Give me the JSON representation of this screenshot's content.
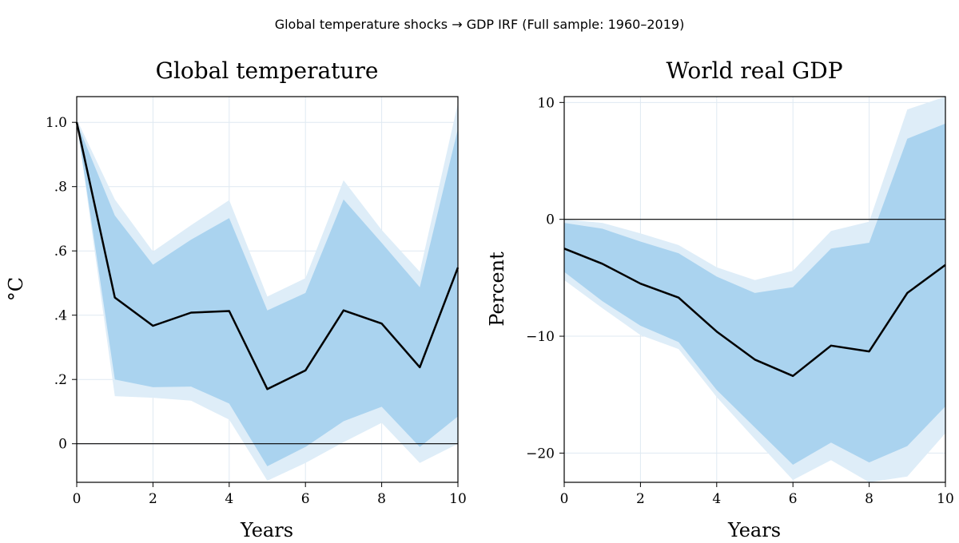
{
  "figure": {
    "suptitle": "Global temperature shocks → GDP IRF (Full sample: 1960–2019)"
  },
  "colors": {
    "band_outer": "#deedf8",
    "band_inner": "#aad3ef",
    "line": "#000000"
  },
  "chart_data": [
    {
      "type": "line",
      "title": "Global temperature",
      "xlabel": "Years",
      "ylabel": "°C",
      "xlim": [
        0,
        10
      ],
      "ylim": [
        -0.12,
        1.08
      ],
      "xticks": [
        0,
        2,
        4,
        6,
        8,
        10
      ],
      "xtick_labels": [
        "0",
        "2",
        "4",
        "6",
        "8",
        "10"
      ],
      "yticks": [
        0,
        0.2,
        0.4,
        0.6,
        0.8,
        1.0
      ],
      "ytick_labels": [
        "0",
        ".2",
        ".4",
        ".6",
        ".8",
        "1.0"
      ],
      "grid": true,
      "zero_line": true,
      "x": [
        0,
        1,
        2,
        3,
        4,
        5,
        6,
        7,
        8,
        9,
        10
      ],
      "irf": [
        1.0,
        0.455,
        0.367,
        0.408,
        0.413,
        0.17,
        0.228,
        0.415,
        0.374,
        0.238,
        0.548
      ],
      "inner_band": {
        "lower": [
          1.0,
          0.2,
          0.176,
          0.178,
          0.125,
          -0.07,
          -0.01,
          0.07,
          0.115,
          -0.01,
          0.085
        ],
        "upper": [
          1.0,
          0.71,
          0.557,
          0.635,
          0.702,
          0.415,
          0.469,
          0.76,
          0.625,
          0.487,
          0.98
        ]
      },
      "outer_band": {
        "lower": [
          1.0,
          0.148,
          0.143,
          0.134,
          0.075,
          -0.115,
          -0.06,
          0.005,
          0.065,
          -0.06,
          0.0
        ],
        "upper": [
          1.01,
          0.76,
          0.598,
          0.68,
          0.758,
          0.458,
          0.515,
          0.82,
          0.665,
          0.535,
          1.06
        ]
      }
    },
    {
      "type": "line",
      "title": "World real GDP",
      "xlabel": "Years",
      "ylabel": "Percent",
      "xlim": [
        0,
        10
      ],
      "ylim": [
        -22.5,
        10.5
      ],
      "xticks": [
        0,
        2,
        4,
        6,
        8,
        10
      ],
      "xtick_labels": [
        "0",
        "2",
        "4",
        "6",
        "8",
        "10"
      ],
      "yticks": [
        -20,
        -10,
        0,
        10
      ],
      "ytick_labels": [
        "−20",
        "−10",
        "0",
        "10"
      ],
      "grid": true,
      "zero_line": true,
      "x": [
        0,
        1,
        2,
        3,
        4,
        5,
        6,
        7,
        8,
        9,
        10
      ],
      "irf": [
        -2.5,
        -3.8,
        -5.5,
        -6.7,
        -9.6,
        -12.0,
        -13.4,
        -10.8,
        -11.3,
        -6.3,
        -3.9
      ],
      "inner_band": {
        "lower": [
          -4.5,
          -7.0,
          -9.1,
          -10.5,
          -14.6,
          -17.8,
          -21.0,
          -19.1,
          -20.8,
          -19.4,
          -16.0
        ],
        "upper": [
          -0.3,
          -0.8,
          -1.9,
          -2.9,
          -4.9,
          -6.3,
          -5.8,
          -2.5,
          -2.0,
          6.9,
          8.2
        ]
      },
      "outer_band": {
        "lower": [
          -5.2,
          -7.6,
          -9.9,
          -11.1,
          -15.2,
          -18.8,
          -22.3,
          -20.6,
          -22.5,
          -22.0,
          -18.3
        ],
        "upper": [
          0.0,
          -0.3,
          -1.2,
          -2.2,
          -4.1,
          -5.2,
          -4.4,
          -1.0,
          -0.2,
          9.4,
          10.5
        ]
      }
    }
  ]
}
